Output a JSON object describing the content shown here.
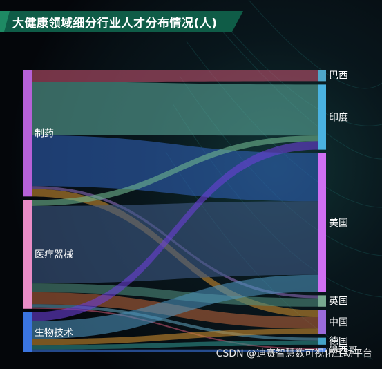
{
  "chart_data": {
    "type": "sankey",
    "title": "大健康领域细分行业人才分布情况(人)",
    "sources": [
      {
        "name": "制药",
        "color": "#b661d8"
      },
      {
        "name": "医疗器械",
        "color": "#e98cc6"
      },
      {
        "name": "生物技术",
        "color": "#3a74e0"
      }
    ],
    "targets": [
      {
        "name": "巴西",
        "color": "#4fa7c9"
      },
      {
        "name": "印度",
        "color": "#4ab2e0"
      },
      {
        "name": "美国",
        "color": "#d06ff2"
      },
      {
        "name": "英国",
        "color": "#78a890"
      },
      {
        "name": "中国",
        "color": "#9a6bdb"
      },
      {
        "name": "德国",
        "color": "#43a3c8"
      },
      {
        "name": "墨西哥",
        "color": "#5b8de8"
      }
    ],
    "links": [
      {
        "source": "制药",
        "target": "巴西",
        "value": 8,
        "color": "#c0526e"
      },
      {
        "source": "制药",
        "target": "印度",
        "value": 36,
        "color": "#5aa79a"
      },
      {
        "source": "制药",
        "target": "美国",
        "value": 34,
        "color": "#2f5fb3"
      },
      {
        "source": "制药",
        "target": "英国",
        "value": 2,
        "color": "#8a6bb8"
      },
      {
        "source": "制药",
        "target": "中国",
        "value": 5,
        "color": "#c88a2e"
      },
      {
        "source": "医疗器械",
        "target": "印度",
        "value": 4,
        "color": "#6fb58f"
      },
      {
        "source": "医疗器械",
        "target": "美国",
        "value": 52,
        "color": "#3d5a86"
      },
      {
        "source": "医疗器械",
        "target": "英国",
        "value": 6,
        "color": "#4f8a7c"
      },
      {
        "source": "医疗器械",
        "target": "中国",
        "value": 8,
        "color": "#b0603a"
      },
      {
        "source": "医疗器械",
        "target": "德国",
        "value": 2,
        "color": "#5a98b0"
      },
      {
        "source": "医疗器械",
        "target": "墨西哥",
        "value": 1,
        "color": "#c0526e"
      },
      {
        "source": "生物技术",
        "target": "印度",
        "value": 6,
        "color": "#6a3fd6"
      },
      {
        "source": "生物技术",
        "target": "美国",
        "value": 12,
        "color": "#4b8fb8"
      },
      {
        "source": "生物技术",
        "target": "中国",
        "value": 4,
        "color": "#c88a2e"
      },
      {
        "source": "生物技术",
        "target": "德国",
        "value": 3,
        "color": "#2f8f8a"
      },
      {
        "source": "生物技术",
        "target": "墨西哥",
        "value": 2,
        "color": "#3a74e0"
      }
    ]
  },
  "watermark": "CSDN @迪赛智慧数可视化互动平台"
}
